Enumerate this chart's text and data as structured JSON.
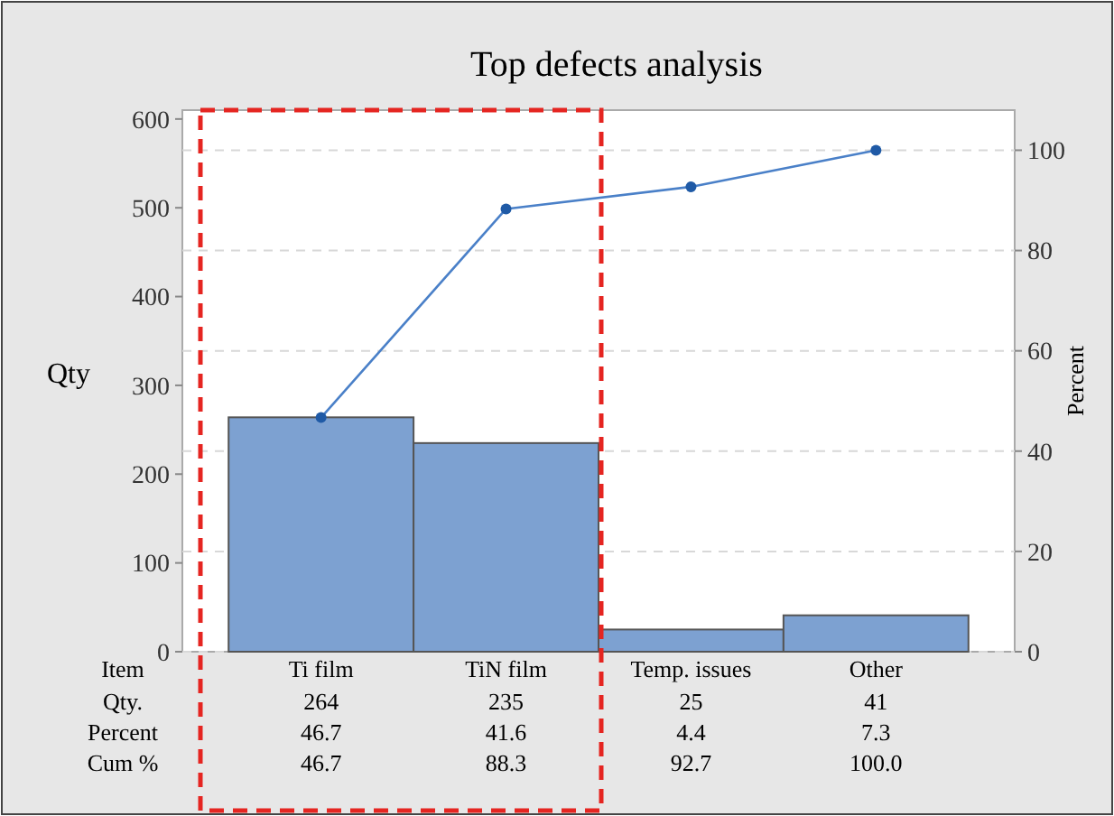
{
  "chart_data": {
    "type": "bar",
    "title": "Top defects analysis",
    "ylabel": "Qty",
    "y2label": "Percent",
    "categories": [
      "Ti film",
      "TiN film",
      "Temp. issues",
      "Other"
    ],
    "series": [
      {
        "color": "#7da1d1",
        "values": [
          264,
          235,
          25,
          41
        ],
        "value_labels": [
          "264",
          "235",
          "25",
          "41"
        ]
      },
      {
        "type": "line",
        "axis": "y2",
        "color": "#4a80c8",
        "marker": "circle",
        "values": [
          46.7,
          88.3,
          92.7,
          100.0
        ],
        "value_labels": [
          "46.7",
          "88.3",
          "92.7",
          "100.0"
        ]
      }
    ],
    "ylim": [
      0,
      610
    ],
    "yticks": [
      0,
      100,
      200,
      300,
      400,
      500,
      600
    ],
    "y2lim": [
      0,
      108
    ],
    "y2ticks": [
      0,
      20,
      40,
      60,
      80,
      100
    ],
    "grid": true,
    "annotations": [
      "Item",
      "Qty.",
      "Percent",
      "Cum %",
      "46.7",
      "41.6",
      "4.4",
      "7.3"
    ]
  }
}
